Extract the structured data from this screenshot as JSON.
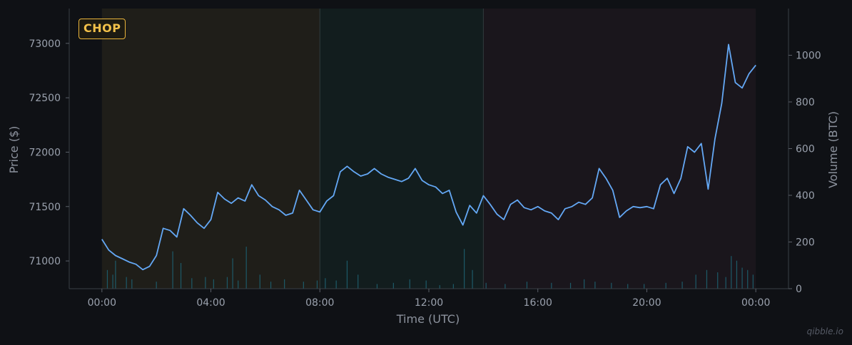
{
  "badge": "CHOP",
  "watermark": "qibble.io",
  "chart_data": {
    "type": "line",
    "xlabel": "Time (UTC)",
    "ylabel_left": "Price ($)",
    "ylabel_right": "Volume (BTC)",
    "x_ticks": [
      "00:00",
      "04:00",
      "08:00",
      "12:00",
      "16:00",
      "20:00",
      "00:00"
    ],
    "y_ticks_left": [
      71000,
      71500,
      72000,
      72500,
      73000
    ],
    "y_ticks_right": [
      0,
      200,
      400,
      600,
      800,
      1000
    ],
    "xlim_hours": [
      -1.2,
      25.2
    ],
    "ylim_price": [
      70745,
      73320
    ],
    "ylim_volume": [
      0,
      1200
    ],
    "regions": [
      {
        "start_hour": 0,
        "end_hour": 8,
        "color": "#1f1e19"
      },
      {
        "start_hour": 8,
        "end_hour": 14,
        "color": "#121d1e"
      },
      {
        "start_hour": 14,
        "end_hour": 24,
        "color": "#1a161c"
      }
    ],
    "colors": {
      "line": "#64a8f5",
      "volume": "#1d5a68",
      "grid": "#2a2d33"
    },
    "series": [
      {
        "kind": "price",
        "x_hours": [
          0,
          0.25,
          0.5,
          0.75,
          1.0,
          1.25,
          1.5,
          1.75,
          2.0,
          2.25,
          2.5,
          2.75,
          3.0,
          3.25,
          3.5,
          3.75,
          4.0,
          4.25,
          4.5,
          4.75,
          5.0,
          5.25,
          5.5,
          5.75,
          6.0,
          6.25,
          6.5,
          6.75,
          7.0,
          7.25,
          7.5,
          7.75,
          8.0,
          8.25,
          8.5,
          8.75,
          9.0,
          9.25,
          9.5,
          9.75,
          10.0,
          10.25,
          10.5,
          10.75,
          11.0,
          11.25,
          11.5,
          11.75,
          12.0,
          12.25,
          12.5,
          12.75,
          13.0,
          13.25,
          13.5,
          13.75,
          14.0,
          14.25,
          14.5,
          14.75,
          15.0,
          15.25,
          15.5,
          15.75,
          16.0,
          16.25,
          16.5,
          16.75,
          17.0,
          17.25,
          17.5,
          17.75,
          18.0,
          18.25,
          18.5,
          18.75,
          19.0,
          19.25,
          19.5,
          19.75,
          20.0,
          20.25,
          20.5,
          20.75,
          21.0,
          21.25,
          21.5,
          21.75,
          22.0,
          22.25,
          22.5,
          22.75,
          23.0,
          23.25,
          23.5,
          23.75,
          24.0
        ],
        "values": [
          71200,
          71100,
          71050,
          71020,
          70990,
          70970,
          70920,
          70950,
          71050,
          71300,
          71280,
          71220,
          71480,
          71420,
          71350,
          71300,
          71380,
          71630,
          71570,
          71530,
          71580,
          71550,
          71700,
          71600,
          71560,
          71500,
          71470,
          71420,
          71440,
          71650,
          71560,
          71470,
          71450,
          71550,
          71600,
          71820,
          71870,
          71820,
          71780,
          71800,
          71850,
          71800,
          71770,
          71750,
          71730,
          71760,
          71850,
          71740,
          71700,
          71680,
          71620,
          71650,
          71450,
          71330,
          71510,
          71440,
          71600,
          71520,
          71430,
          71380,
          71520,
          71560,
          71490,
          71470,
          71500,
          71460,
          71440,
          71380,
          71480,
          71500,
          71540,
          71520,
          71580,
          71850,
          71760,
          71650,
          71400,
          71460,
          71500,
          71490,
          71500,
          71480,
          71700,
          71760,
          71620,
          71760,
          72050,
          72000,
          72080,
          71660,
          72120,
          72450,
          72990,
          72640,
          72590,
          72720,
          72800
        ]
      },
      {
        "kind": "volume",
        "x_hours": [
          0.2,
          0.4,
          0.5,
          0.9,
          1.1,
          2.0,
          2.6,
          2.9,
          3.3,
          3.8,
          4.1,
          4.6,
          4.8,
          5.0,
          5.3,
          5.8,
          6.2,
          6.7,
          7.4,
          7.9,
          8.2,
          8.6,
          9.0,
          9.4,
          10.1,
          10.7,
          11.3,
          11.9,
          12.4,
          12.9,
          13.3,
          13.6,
          14.1,
          14.8,
          15.6,
          16.5,
          17.2,
          17.7,
          18.1,
          18.7,
          19.3,
          19.9,
          20.7,
          21.3,
          21.8,
          22.2,
          22.6,
          22.9,
          23.1,
          23.3,
          23.5,
          23.7,
          23.9
        ],
        "values": [
          80,
          60,
          120,
          50,
          40,
          30,
          160,
          110,
          45,
          50,
          40,
          50,
          130,
          35,
          180,
          60,
          30,
          40,
          30,
          35,
          45,
          35,
          120,
          60,
          20,
          25,
          40,
          35,
          15,
          20,
          170,
          80,
          25,
          20,
          30,
          25,
          25,
          40,
          30,
          25,
          20,
          20,
          25,
          30,
          60,
          80,
          70,
          50,
          140,
          120,
          90,
          80,
          60
        ]
      }
    ]
  }
}
